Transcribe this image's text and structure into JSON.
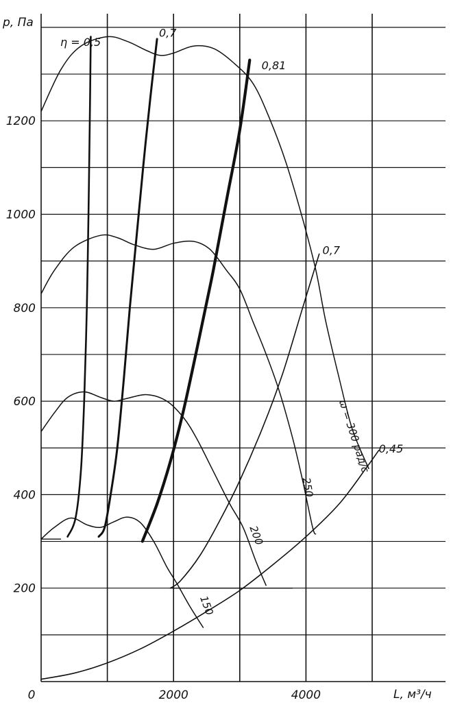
{
  "chart_data": {
    "type": "line",
    "title": "",
    "xlabel": "L, м³/ч",
    "ylabel": "p, Па",
    "xlim": [
      0,
      5700
    ],
    "ylim": [
      0,
      1400
    ],
    "grid": true,
    "x_ticks": [
      {
        "value": 0,
        "label": "0"
      },
      {
        "value": 2000,
        "label": "2000"
      },
      {
        "value": 4000,
        "label": "4000"
      }
    ],
    "y_ticks": [
      {
        "value": 200,
        "label": "200"
      },
      {
        "value": 400,
        "label": "400"
      },
      {
        "value": 600,
        "label": "600"
      },
      {
        "value": 800,
        "label": "800"
      },
      {
        "value": 1000,
        "label": "1000"
      },
      {
        "value": 1200,
        "label": "1200"
      }
    ],
    "pressure_curves": [
      {
        "label": "150",
        "label_at": [
          2400,
          180
        ],
        "points": [
          [
            0,
            305
          ],
          [
            200,
            330
          ],
          [
            450,
            350
          ],
          [
            700,
            335
          ],
          [
            900,
            330
          ],
          [
            1100,
            342
          ],
          [
            1300,
            352
          ],
          [
            1500,
            340
          ],
          [
            1700,
            300
          ],
          [
            1900,
            245
          ],
          [
            2050,
            210
          ],
          [
            2250,
            160
          ],
          [
            2450,
            115
          ]
        ]
      },
      {
        "label": "200",
        "label_at": [
          3150,
          330
        ],
        "points": [
          [
            0,
            535
          ],
          [
            200,
            575
          ],
          [
            400,
            608
          ],
          [
            650,
            620
          ],
          [
            900,
            608
          ],
          [
            1100,
            600
          ],
          [
            1300,
            606
          ],
          [
            1600,
            614
          ],
          [
            1900,
            600
          ],
          [
            2150,
            565
          ],
          [
            2350,
            520
          ],
          [
            2600,
            450
          ],
          [
            2850,
            380
          ],
          [
            3050,
            330
          ],
          [
            3250,
            255
          ],
          [
            3400,
            205
          ]
        ]
      },
      {
        "label": "250",
        "label_at": [
          3950,
          435
        ],
        "points": [
          [
            0,
            830
          ],
          [
            200,
            880
          ],
          [
            500,
            930
          ],
          [
            900,
            955
          ],
          [
            1150,
            950
          ],
          [
            1400,
            935
          ],
          [
            1700,
            925
          ],
          [
            2000,
            938
          ],
          [
            2300,
            942
          ],
          [
            2550,
            925
          ],
          [
            2800,
            880
          ],
          [
            3000,
            840
          ],
          [
            3200,
            770
          ],
          [
            3400,
            700
          ],
          [
            3600,
            620
          ],
          [
            3800,
            520
          ],
          [
            3950,
            430
          ],
          [
            4100,
            330
          ],
          [
            4150,
            315
          ]
        ]
      },
      {
        "label": "ω = 300 рад/с",
        "label_at": [
          4500,
          600
        ],
        "points": [
          [
            0,
            1220
          ],
          [
            300,
            1310
          ],
          [
            600,
            1360
          ],
          [
            1000,
            1380
          ],
          [
            1300,
            1370
          ],
          [
            1600,
            1350
          ],
          [
            1800,
            1340
          ],
          [
            2000,
            1345
          ],
          [
            2300,
            1360
          ],
          [
            2600,
            1355
          ],
          [
            2900,
            1325
          ],
          [
            3200,
            1280
          ],
          [
            3450,
            1205
          ],
          [
            3700,
            1110
          ],
          [
            3950,
            990
          ],
          [
            4150,
            880
          ],
          [
            4300,
            770
          ],
          [
            4500,
            650
          ],
          [
            4700,
            540
          ],
          [
            4950,
            455
          ]
        ]
      }
    ],
    "efficiency_curves": [
      {
        "label": "η = 0,5",
        "label_at": [
          290,
          1360
        ],
        "points": [
          [
            750,
            1380
          ],
          [
            735,
            1200
          ],
          [
            715,
            1000
          ],
          [
            690,
            800
          ],
          [
            650,
            600
          ],
          [
            600,
            450
          ],
          [
            520,
            350
          ],
          [
            400,
            310
          ]
        ]
      },
      {
        "label": "0,7",
        "label_at": [
          1780,
          1380
        ],
        "points": [
          [
            1750,
            1375
          ],
          [
            1650,
            1250
          ],
          [
            1540,
            1100
          ],
          [
            1440,
            950
          ],
          [
            1340,
            800
          ],
          [
            1250,
            650
          ],
          [
            1150,
            500
          ],
          [
            1050,
            400
          ],
          [
            960,
            330
          ],
          [
            870,
            310
          ]
        ]
      },
      {
        "label": "0,81",
        "label_at": [
          3330,
          1310
        ],
        "points": [
          [
            3150,
            1330
          ],
          [
            3000,
            1180
          ],
          [
            2800,
            1030
          ],
          [
            2600,
            880
          ],
          [
            2380,
            730
          ],
          [
            2150,
            580
          ],
          [
            1950,
            470
          ],
          [
            1750,
            380
          ],
          [
            1530,
            300
          ]
        ]
      },
      {
        "label": "0,7",
        "label_at": [
          4250,
          915
        ],
        "points": [
          [
            4200,
            915
          ],
          [
            3950,
            800
          ],
          [
            3650,
            660
          ],
          [
            3350,
            545
          ],
          [
            3000,
            430
          ],
          [
            2700,
            345
          ],
          [
            2400,
            270
          ],
          [
            2100,
            215
          ],
          [
            1950,
            200
          ]
        ]
      },
      {
        "label": "0,45",
        "label_at": [
          5100,
          490
        ],
        "points": [
          [
            0,
            5
          ],
          [
            500,
            18
          ],
          [
            1000,
            40
          ],
          [
            1500,
            70
          ],
          [
            2000,
            108
          ],
          [
            2500,
            150
          ],
          [
            3000,
            195
          ],
          [
            3500,
            250
          ],
          [
            4000,
            310
          ],
          [
            4500,
            380
          ],
          [
            4900,
            455
          ],
          [
            5100,
            495
          ]
        ]
      }
    ],
    "extra_lines": [
      {
        "points": [
          [
            1950,
            200
          ],
          [
            3800,
            200
          ]
        ]
      },
      {
        "points": [
          [
            0,
            305
          ],
          [
            300,
            305
          ]
        ]
      }
    ]
  }
}
